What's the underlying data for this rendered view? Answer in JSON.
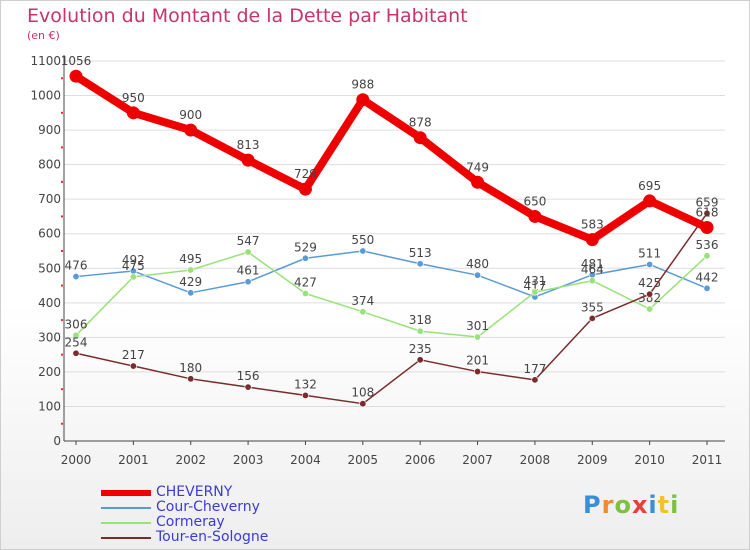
{
  "header": {
    "title": "Evolution du Montant de la Dette par Habitant",
    "subtitle": "(en €)"
  },
  "colors": {
    "title": "#c8336c",
    "legend_text": "#3b3bd6",
    "axis": "#444444",
    "grid": "#dddddd"
  },
  "chart_data": {
    "type": "line",
    "title": "Evolution du Montant de la Dette par Habitant",
    "subtitle": "(en €)",
    "xlabel": "",
    "ylabel": "",
    "x": [
      "2000",
      "2001",
      "2002",
      "2003",
      "2004",
      "2005",
      "2006",
      "2007",
      "2008",
      "2009",
      "2010",
      "2011"
    ],
    "ylim": [
      0,
      1100
    ],
    "yticks": [
      0,
      100,
      200,
      300,
      400,
      500,
      600,
      700,
      800,
      900,
      1000,
      1100
    ],
    "grid": true,
    "legend": "bottom-left",
    "series": [
      {
        "name": "CHEVERNY",
        "color": "#ee0000",
        "values": [
          1056,
          950,
          900,
          813,
          729,
          988,
          878,
          749,
          650,
          583,
          695,
          618
        ]
      },
      {
        "name": "Cour-Cheverny",
        "color": "#5b9bd5",
        "values": [
          476,
          492,
          429,
          461,
          529,
          550,
          513,
          480,
          417,
          481,
          511,
          442
        ]
      },
      {
        "name": "Cormeray",
        "color": "#99e27a",
        "values": [
          306,
          475,
          495,
          547,
          427,
          374,
          318,
          301,
          431,
          464,
          382,
          536
        ]
      },
      {
        "name": "Tour-en-Sologne",
        "color": "#7a2b2b",
        "values": [
          254,
          217,
          180,
          156,
          132,
          108,
          235,
          201,
          177,
          355,
          425,
          659
        ]
      }
    ]
  },
  "logo": {
    "letters": [
      "P",
      "r",
      "o",
      "x",
      "i",
      "t",
      "i"
    ],
    "colors": [
      "#3a8fd8",
      "#f08a2a",
      "#7cc142",
      "#e8403a",
      "#3a8fd8",
      "#f2c12e",
      "#7cc142"
    ]
  }
}
